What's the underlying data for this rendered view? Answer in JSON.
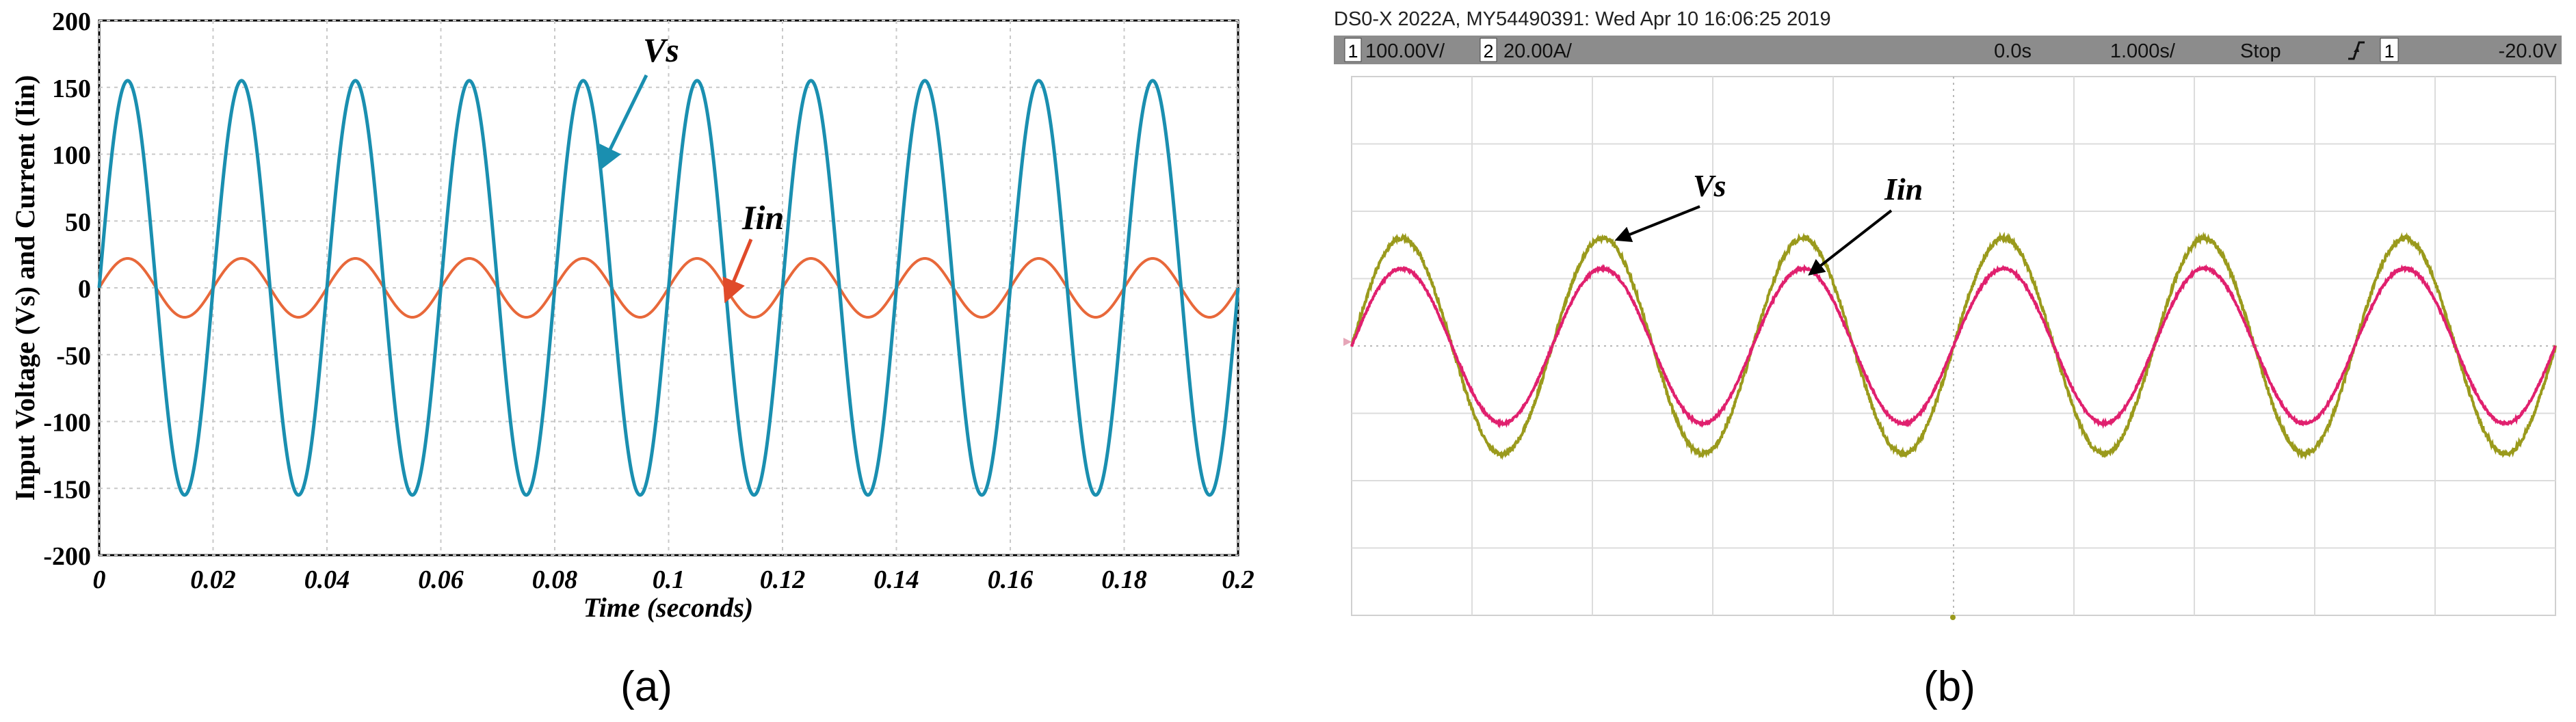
{
  "chart_data": [
    {
      "panel_label": "(a)",
      "type": "line",
      "xlabel": "Time (seconds)",
      "ylabel": "Input Voltage (Vs) and Current (Iin)",
      "xlim": [
        0,
        0.2
      ],
      "ylim": [
        -200,
        200
      ],
      "x_ticks": [
        "0",
        "0.02",
        "0.04",
        "0.06",
        "0.08",
        "0.1",
        "0.12",
        "0.14",
        "0.16",
        "0.18",
        "0.2"
      ],
      "y_ticks": [
        "200",
        "150",
        "100",
        "50",
        "0",
        "-50",
        "-100",
        "-150",
        "-200"
      ],
      "grid": true,
      "series": [
        {
          "name": "Vs",
          "color": "#1a8fb0",
          "function": "sine",
          "amplitude": 155,
          "frequency_hz": 50
        },
        {
          "name": "Iin",
          "color": "#e8683a",
          "function": "sine",
          "amplitude": 22,
          "frequency_hz": 50
        }
      ],
      "annotations": [
        {
          "text": "Vs",
          "points_to": "Vs"
        },
        {
          "text": "Iin",
          "points_to": "Iin"
        }
      ]
    },
    {
      "panel_label": "(b)",
      "type": "line",
      "header": "DS0-X 2022A, MY54490391: Wed Apr 10 16:06:25 2019",
      "toolbar": {
        "ch1_num": "1",
        "ch1_scale": "100.00V/",
        "ch2_num": "2",
        "ch2_scale": "20.00A/",
        "delay": "0.0s",
        "timebase": "1.000s/",
        "status": "Stop",
        "trigger_icon": "trigger-edge-icon",
        "trigger_ch": "1",
        "trigger_level": "-20.0V"
      },
      "grid": true,
      "series": [
        {
          "name": "Vs",
          "color": "#9a9a1c",
          "function": "sine",
          "amplitude_div": 1.6,
          "cycles": 6
        },
        {
          "name": "Iin",
          "color": "#e0206e",
          "function": "sine",
          "amplitude_div": 1.15,
          "cycles": 6
        }
      ],
      "annotations": [
        {
          "text": "Vs",
          "points_to": "Vs"
        },
        {
          "text": "Iin",
          "points_to": "Iin"
        }
      ]
    }
  ]
}
